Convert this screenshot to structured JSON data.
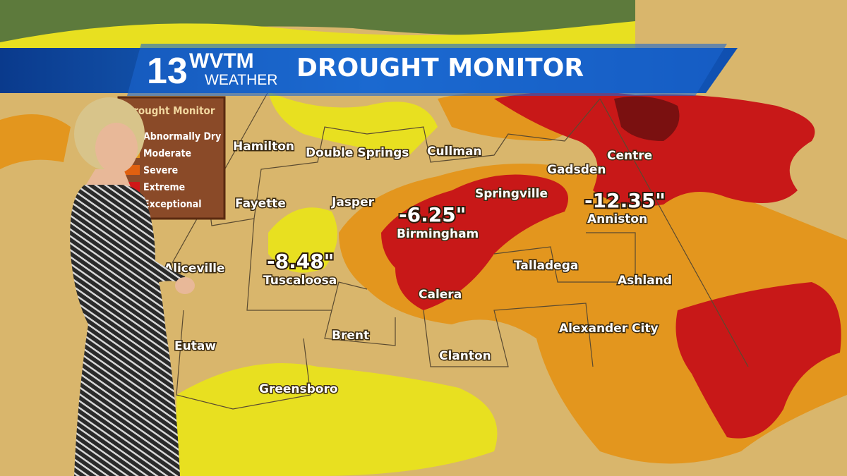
{
  "header": {
    "logo_number": "13",
    "logo_call": "WVTM",
    "logo_sub": "WEATHER",
    "title": "DROUGHT MONITOR"
  },
  "legend": {
    "title": "Drought Monitor",
    "items": [
      "Abnormally Dry",
      "Moderate",
      "Severe",
      "Extreme",
      "Exceptional"
    ]
  },
  "cities": [
    "Hamilton",
    "Double Springs",
    "Cullman",
    "Centre",
    "Gadsden",
    "Springville",
    "Fayette",
    "Jasper",
    "Birmingham",
    "Anniston",
    "Aliceville",
    "Tuscaloosa",
    "Talladega",
    "Ashland",
    "Calera",
    "Alexander City",
    "Brent",
    "Eutaw",
    "Clanton",
    "Greensboro"
  ],
  "deficits": {
    "birmingham": "-6.25\"",
    "tuscaloosa": "-8.48\"",
    "anniston": "-12.35\""
  }
}
